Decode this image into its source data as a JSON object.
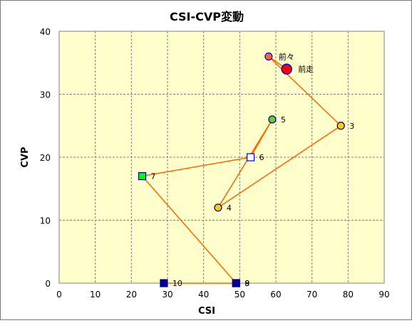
{
  "chart_data": {
    "type": "scatter",
    "title": "CSI-CVP変動",
    "xlabel": "CSI",
    "ylabel": "CVP",
    "xlim": [
      0,
      90
    ],
    "ylim": [
      0,
      40
    ],
    "xticks": [
      "0",
      "10",
      "20",
      "30",
      "40",
      "50",
      "60",
      "70",
      "80",
      "90"
    ],
    "yticks": [
      "0",
      "10",
      "20",
      "30",
      "40"
    ],
    "grid": true,
    "legend": "none",
    "plot_bg": "#ffffcc",
    "line_color": "#ff6600",
    "points": [
      {
        "label": "前走",
        "x": 63,
        "y": 34,
        "shape": "circle-large",
        "fill": "#ff0000",
        "stroke": "#0000cc"
      },
      {
        "label": "前々",
        "x": 58,
        "y": 36,
        "shape": "circle",
        "fill": "#ff6633",
        "stroke": "#0000cc"
      },
      {
        "label": "3",
        "x": 78,
        "y": 25,
        "shape": "circle",
        "fill": "#ffcc00",
        "stroke": "#000080"
      },
      {
        "label": "4",
        "x": 44,
        "y": 12,
        "shape": "circle",
        "fill": "#ffcc00",
        "stroke": "#000080"
      },
      {
        "label": "5",
        "x": 59,
        "y": 26,
        "shape": "circle",
        "fill": "#66cc33",
        "stroke": "#000080"
      },
      {
        "label": "6",
        "x": 53,
        "y": 20,
        "shape": "square",
        "fill": "#ffffff",
        "stroke": "#0000cc"
      },
      {
        "label": "7",
        "x": 23,
        "y": 17,
        "shape": "square",
        "fill": "#00ff00",
        "stroke": "#000080"
      },
      {
        "label": "8",
        "x": 49,
        "y": 0,
        "shape": "square",
        "fill": "#000099",
        "stroke": "#000080"
      },
      {
        "label": "9",
        "x": 49,
        "y": 0,
        "shape": "square",
        "fill": "#000099",
        "stroke": "#000080"
      },
      {
        "label": "10",
        "x": 29,
        "y": 0,
        "shape": "square",
        "fill": "#000099",
        "stroke": "#000080"
      }
    ]
  }
}
